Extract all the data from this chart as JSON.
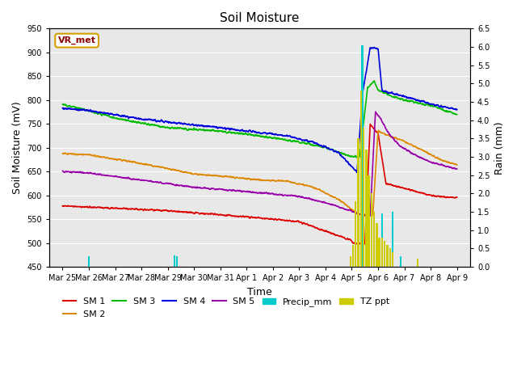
{
  "title": "Soil Moisture",
  "xlabel": "Time",
  "ylabel_left": "Soil Moisture (mV)",
  "ylabel_right": "Rain (mm)",
  "ylim_left": [
    450,
    950
  ],
  "ylim_right": [
    0.0,
    6.5
  ],
  "yticks_left": [
    450,
    500,
    550,
    600,
    650,
    700,
    750,
    800,
    850,
    900,
    950
  ],
  "yticks_right": [
    0.0,
    0.5,
    1.0,
    1.5,
    2.0,
    2.5,
    3.0,
    3.5,
    4.0,
    4.5,
    5.0,
    5.5,
    6.0,
    6.5
  ],
  "xtick_labels": [
    "Mar 25",
    "Mar 26",
    "Mar 27",
    "Mar 28",
    "Mar 29",
    "Mar 30",
    "Mar 31",
    "Apr 1",
    "Apr 2",
    "Apr 3",
    "Apr 4",
    "Apr 5",
    "Apr 6",
    "Apr 7",
    "Apr 8",
    "Apr 9"
  ],
  "background_color": "#e8e8e8",
  "grid_color": "#ffffff",
  "legend_box_color": "#d4a000",
  "legend_box_text": "VR_met",
  "legend_box_text_color": "#8b0000",
  "sm1_color": "#dd0000",
  "sm2_color": "#dd8800",
  "sm3_color": "#00bb00",
  "sm4_color": "#0000dd",
  "sm5_color": "#9900aa",
  "precip_color": "#00cccc",
  "tz_color": "#cccc00",
  "line_width": 1.2
}
